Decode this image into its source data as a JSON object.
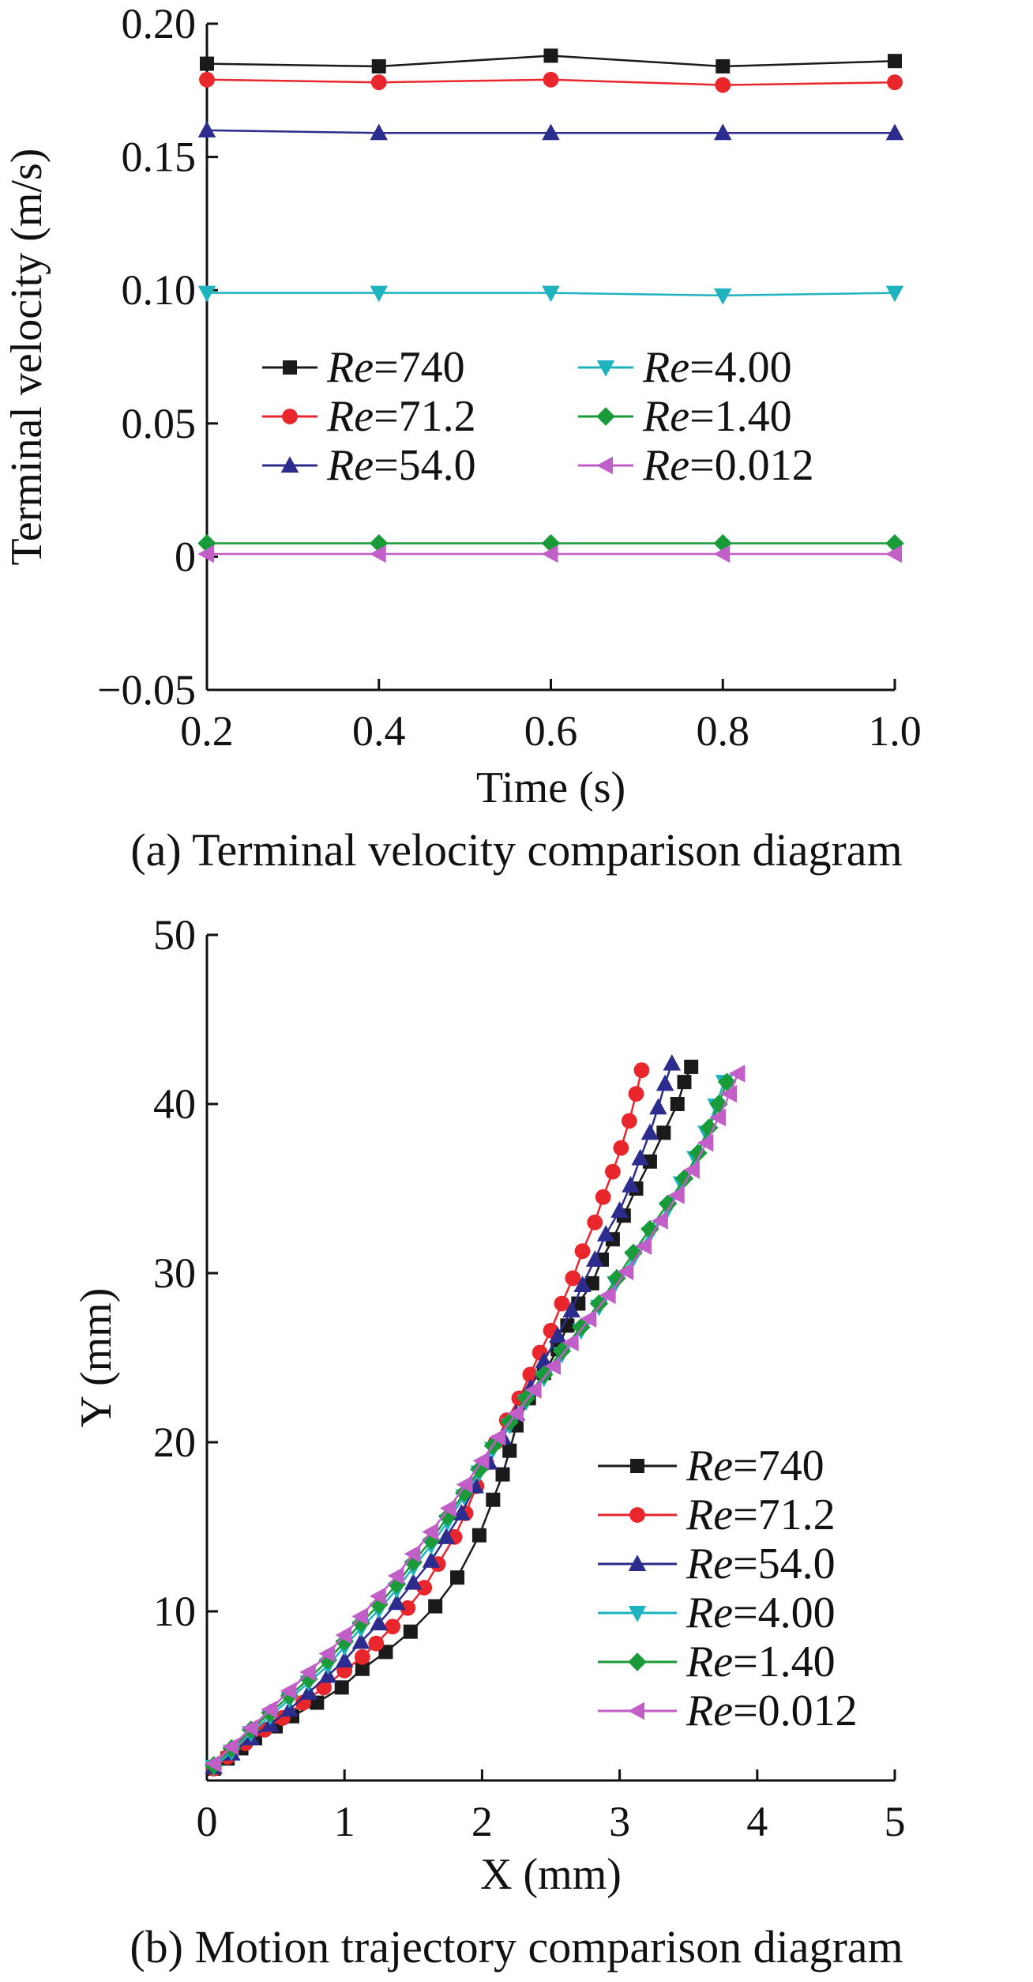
{
  "chart_data": [
    {
      "type": "line",
      "panel": "a",
      "caption": "(a) Terminal velocity comparison diagram",
      "xlabel": "Time (s)",
      "ylabel": "Terminal velocity (m/s)",
      "xlim": [
        0.2,
        1.0
      ],
      "ylim": [
        -0.05,
        0.2
      ],
      "xticks": [
        "0.2",
        "0.4",
        "0.6",
        "0.8",
        "1.0"
      ],
      "yticks": [
        "−0.05",
        "0",
        "0.05",
        "0.10",
        "0.15",
        "0.20"
      ],
      "x": [
        0.2,
        0.4,
        0.6,
        0.8,
        1.0
      ],
      "grid": false,
      "legend_position": "center-left",
      "series": [
        {
          "name": "Re=740",
          "color": "#1a1a1a",
          "marker": "square",
          "values": [
            0.185,
            0.184,
            0.188,
            0.184,
            0.186
          ]
        },
        {
          "name": "Re=71.2",
          "color": "#e8262b",
          "marker": "circle",
          "values": [
            0.179,
            0.178,
            0.179,
            0.177,
            0.178
          ]
        },
        {
          "name": "Re=54.0",
          "color": "#2c2c8e",
          "marker": "triangle-up",
          "values": [
            0.16,
            0.159,
            0.159,
            0.159,
            0.159
          ]
        },
        {
          "name": "Re=4.00",
          "color": "#1fb3c0",
          "marker": "triangle-down",
          "values": [
            0.099,
            0.099,
            0.099,
            0.098,
            0.099
          ]
        },
        {
          "name": "Re=1.40",
          "color": "#1a9b3a",
          "marker": "diamond",
          "values": [
            0.005,
            0.005,
            0.005,
            0.005,
            0.005
          ]
        },
        {
          "name": "Re=0.012",
          "color": "#c25ec8",
          "marker": "triangle-left",
          "values": [
            0.001,
            0.001,
            0.001,
            0.001,
            0.001
          ]
        }
      ]
    },
    {
      "type": "line",
      "panel": "b",
      "caption": "(b) Motion trajectory comparison diagram",
      "xlabel": "X (mm)",
      "ylabel": "Y (mm)",
      "xlim": [
        0,
        5
      ],
      "ylim": [
        0,
        50
      ],
      "xticks": [
        "0",
        "1",
        "2",
        "3",
        "4",
        "5"
      ],
      "yticks": [
        "10",
        "20",
        "30",
        "40",
        "50"
      ],
      "grid": false,
      "legend_position": "bottom-right",
      "series": [
        {
          "name": "Re=740",
          "color": "#1a1a1a",
          "marker": "square",
          "points": [
            [
              0.05,
              0.7
            ],
            [
              0.15,
              1.3
            ],
            [
              0.25,
              1.9
            ],
            [
              0.35,
              2.5
            ],
            [
              0.5,
              3.2
            ],
            [
              0.62,
              3.8
            ],
            [
              0.8,
              4.6
            ],
            [
              0.98,
              5.5
            ],
            [
              1.13,
              6.6
            ],
            [
              1.3,
              7.6
            ],
            [
              1.48,
              8.8
            ],
            [
              1.66,
              10.3
            ],
            [
              1.82,
              12.0
            ],
            [
              1.98,
              14.5
            ],
            [
              2.08,
              16.6
            ],
            [
              2.15,
              18.1
            ],
            [
              2.2,
              19.5
            ],
            [
              2.25,
              21.0
            ],
            [
              2.34,
              22.6
            ],
            [
              2.45,
              24.1
            ],
            [
              2.55,
              25.5
            ],
            [
              2.62,
              26.9
            ],
            [
              2.7,
              28.2
            ],
            [
              2.8,
              29.4
            ],
            [
              2.87,
              30.8
            ],
            [
              2.95,
              32.0
            ],
            [
              3.03,
              33.4
            ],
            [
              3.12,
              35.0
            ],
            [
              3.22,
              36.6
            ],
            [
              3.32,
              38.3
            ],
            [
              3.42,
              40.0
            ],
            [
              3.47,
              41.3
            ],
            [
              3.52,
              42.2
            ]
          ]
        },
        {
          "name": "Re=71.2",
          "color": "#e8262b",
          "marker": "circle",
          "points": [
            [
              0.05,
              0.7
            ],
            [
              0.15,
              1.4
            ],
            [
              0.28,
              2.2
            ],
            [
              0.42,
              3.0
            ],
            [
              0.55,
              3.7
            ],
            [
              0.7,
              4.6
            ],
            [
              0.85,
              5.5
            ],
            [
              1.0,
              6.5
            ],
            [
              1.13,
              7.3
            ],
            [
              1.23,
              8.1
            ],
            [
              1.35,
              9.1
            ],
            [
              1.46,
              10.2
            ],
            [
              1.58,
              11.4
            ],
            [
              1.68,
              12.8
            ],
            [
              1.8,
              14.4
            ],
            [
              1.88,
              15.8
            ],
            [
              1.96,
              17.4
            ],
            [
              2.03,
              18.8
            ],
            [
              2.1,
              20.0
            ],
            [
              2.18,
              21.3
            ],
            [
              2.27,
              22.6
            ],
            [
              2.35,
              24.0
            ],
            [
              2.42,
              25.3
            ],
            [
              2.5,
              26.6
            ],
            [
              2.58,
              28.2
            ],
            [
              2.66,
              29.7
            ],
            [
              2.73,
              31.3
            ],
            [
              2.82,
              33.0
            ],
            [
              2.88,
              34.5
            ],
            [
              2.95,
              36.0
            ],
            [
              3.01,
              37.4
            ],
            [
              3.07,
              39.0
            ],
            [
              3.12,
              40.6
            ],
            [
              3.16,
              42.0
            ]
          ]
        },
        {
          "name": "Re=54.0",
          "color": "#2c2c8e",
          "marker": "triangle-up",
          "points": [
            [
              0.05,
              0.8
            ],
            [
              0.18,
              1.6
            ],
            [
              0.32,
              2.5
            ],
            [
              0.46,
              3.3
            ],
            [
              0.6,
              4.2
            ],
            [
              0.74,
              5.2
            ],
            [
              0.88,
              6.2
            ],
            [
              1.0,
              7.1
            ],
            [
              1.12,
              8.2
            ],
            [
              1.25,
              9.3
            ],
            [
              1.38,
              10.5
            ],
            [
              1.5,
              11.7
            ],
            [
              1.63,
              13.0
            ],
            [
              1.74,
              14.4
            ],
            [
              1.85,
              15.8
            ],
            [
              1.95,
              17.4
            ],
            [
              2.05,
              18.8
            ],
            [
              2.15,
              20.3
            ],
            [
              2.25,
              21.7
            ],
            [
              2.35,
              23.2
            ],
            [
              2.45,
              24.8
            ],
            [
              2.55,
              26.3
            ],
            [
              2.65,
              27.8
            ],
            [
              2.73,
              29.3
            ],
            [
              2.82,
              30.8
            ],
            [
              2.9,
              32.3
            ],
            [
              3.0,
              33.7
            ],
            [
              3.08,
              35.2
            ],
            [
              3.15,
              36.8
            ],
            [
              3.22,
              38.3
            ],
            [
              3.28,
              39.8
            ],
            [
              3.33,
              41.2
            ],
            [
              3.38,
              42.4
            ]
          ]
        },
        {
          "name": "Re=4.00",
          "color": "#1fb3c0",
          "marker": "triangle-down",
          "points": [
            [
              0.05,
              0.8
            ],
            [
              0.18,
              1.7
            ],
            [
              0.32,
              2.8
            ],
            [
              0.46,
              3.8
            ],
            [
              0.6,
              4.8
            ],
            [
              0.74,
              5.8
            ],
            [
              0.88,
              6.8
            ],
            [
              1.0,
              7.9
            ],
            [
              1.12,
              9.0
            ],
            [
              1.25,
              10.1
            ],
            [
              1.38,
              11.3
            ],
            [
              1.5,
              12.6
            ],
            [
              1.63,
              13.9
            ],
            [
              1.75,
              15.3
            ],
            [
              1.87,
              16.8
            ],
            [
              1.98,
              18.2
            ],
            [
              2.08,
              19.6
            ],
            [
              2.2,
              21.0
            ],
            [
              2.32,
              22.4
            ],
            [
              2.45,
              23.8
            ],
            [
              2.58,
              25.2
            ],
            [
              2.72,
              26.6
            ],
            [
              2.85,
              28.0
            ],
            [
              2.97,
              29.4
            ],
            [
              3.1,
              30.9
            ],
            [
              3.22,
              32.3
            ],
            [
              3.35,
              33.8
            ],
            [
              3.45,
              35.3
            ],
            [
              3.55,
              36.8
            ],
            [
              3.63,
              38.3
            ],
            [
              3.7,
              39.9
            ],
            [
              3.76,
              41.3
            ]
          ]
        },
        {
          "name": "Re=1.40",
          "color": "#1a9b3a",
          "marker": "diamond",
          "points": [
            [
              0.05,
              0.9
            ],
            [
              0.18,
              1.9
            ],
            [
              0.32,
              3.0
            ],
            [
              0.46,
              4.0
            ],
            [
              0.6,
              5.0
            ],
            [
              0.74,
              6.0
            ],
            [
              0.88,
              7.1
            ],
            [
              1.0,
              8.2
            ],
            [
              1.12,
              9.3
            ],
            [
              1.25,
              10.4
            ],
            [
              1.38,
              11.6
            ],
            [
              1.5,
              12.9
            ],
            [
              1.63,
              14.2
            ],
            [
              1.75,
              15.6
            ],
            [
              1.87,
              17.0
            ],
            [
              1.98,
              18.4
            ],
            [
              2.08,
              19.8
            ],
            [
              2.2,
              21.2
            ],
            [
              2.32,
              22.6
            ],
            [
              2.45,
              24.0
            ],
            [
              2.58,
              25.4
            ],
            [
              2.72,
              26.8
            ],
            [
              2.85,
              28.2
            ],
            [
              2.98,
              29.7
            ],
            [
              3.1,
              31.2
            ],
            [
              3.22,
              32.6
            ],
            [
              3.35,
              34.1
            ],
            [
              3.47,
              35.6
            ],
            [
              3.57,
              37.1
            ],
            [
              3.65,
              38.6
            ],
            [
              3.72,
              40.0
            ],
            [
              3.78,
              41.3
            ]
          ]
        },
        {
          "name": "Re=0.012",
          "color": "#c25ec8",
          "marker": "triangle-left",
          "points": [
            [
              0.05,
              1.0
            ],
            [
              0.18,
              2.0
            ],
            [
              0.32,
              3.1
            ],
            [
              0.46,
              4.2
            ],
            [
              0.6,
              5.3
            ],
            [
              0.74,
              6.4
            ],
            [
              0.88,
              7.5
            ],
            [
              1.0,
              8.6
            ],
            [
              1.12,
              9.7
            ],
            [
              1.25,
              10.9
            ],
            [
              1.38,
              12.1
            ],
            [
              1.5,
              13.4
            ],
            [
              1.63,
              14.7
            ],
            [
              1.76,
              16.1
            ],
            [
              1.88,
              17.5
            ],
            [
              2.0,
              18.9
            ],
            [
              2.12,
              20.3
            ],
            [
              2.25,
              21.7
            ],
            [
              2.38,
              23.1
            ],
            [
              2.52,
              24.5
            ],
            [
              2.65,
              25.9
            ],
            [
              2.78,
              27.3
            ],
            [
              2.92,
              28.7
            ],
            [
              3.05,
              30.1
            ],
            [
              3.18,
              31.6
            ],
            [
              3.3,
              33.1
            ],
            [
              3.42,
              34.6
            ],
            [
              3.53,
              36.1
            ],
            [
              3.63,
              37.7
            ],
            [
              3.72,
              39.2
            ],
            [
              3.8,
              40.6
            ],
            [
              3.86,
              41.8
            ]
          ]
        }
      ]
    }
  ]
}
